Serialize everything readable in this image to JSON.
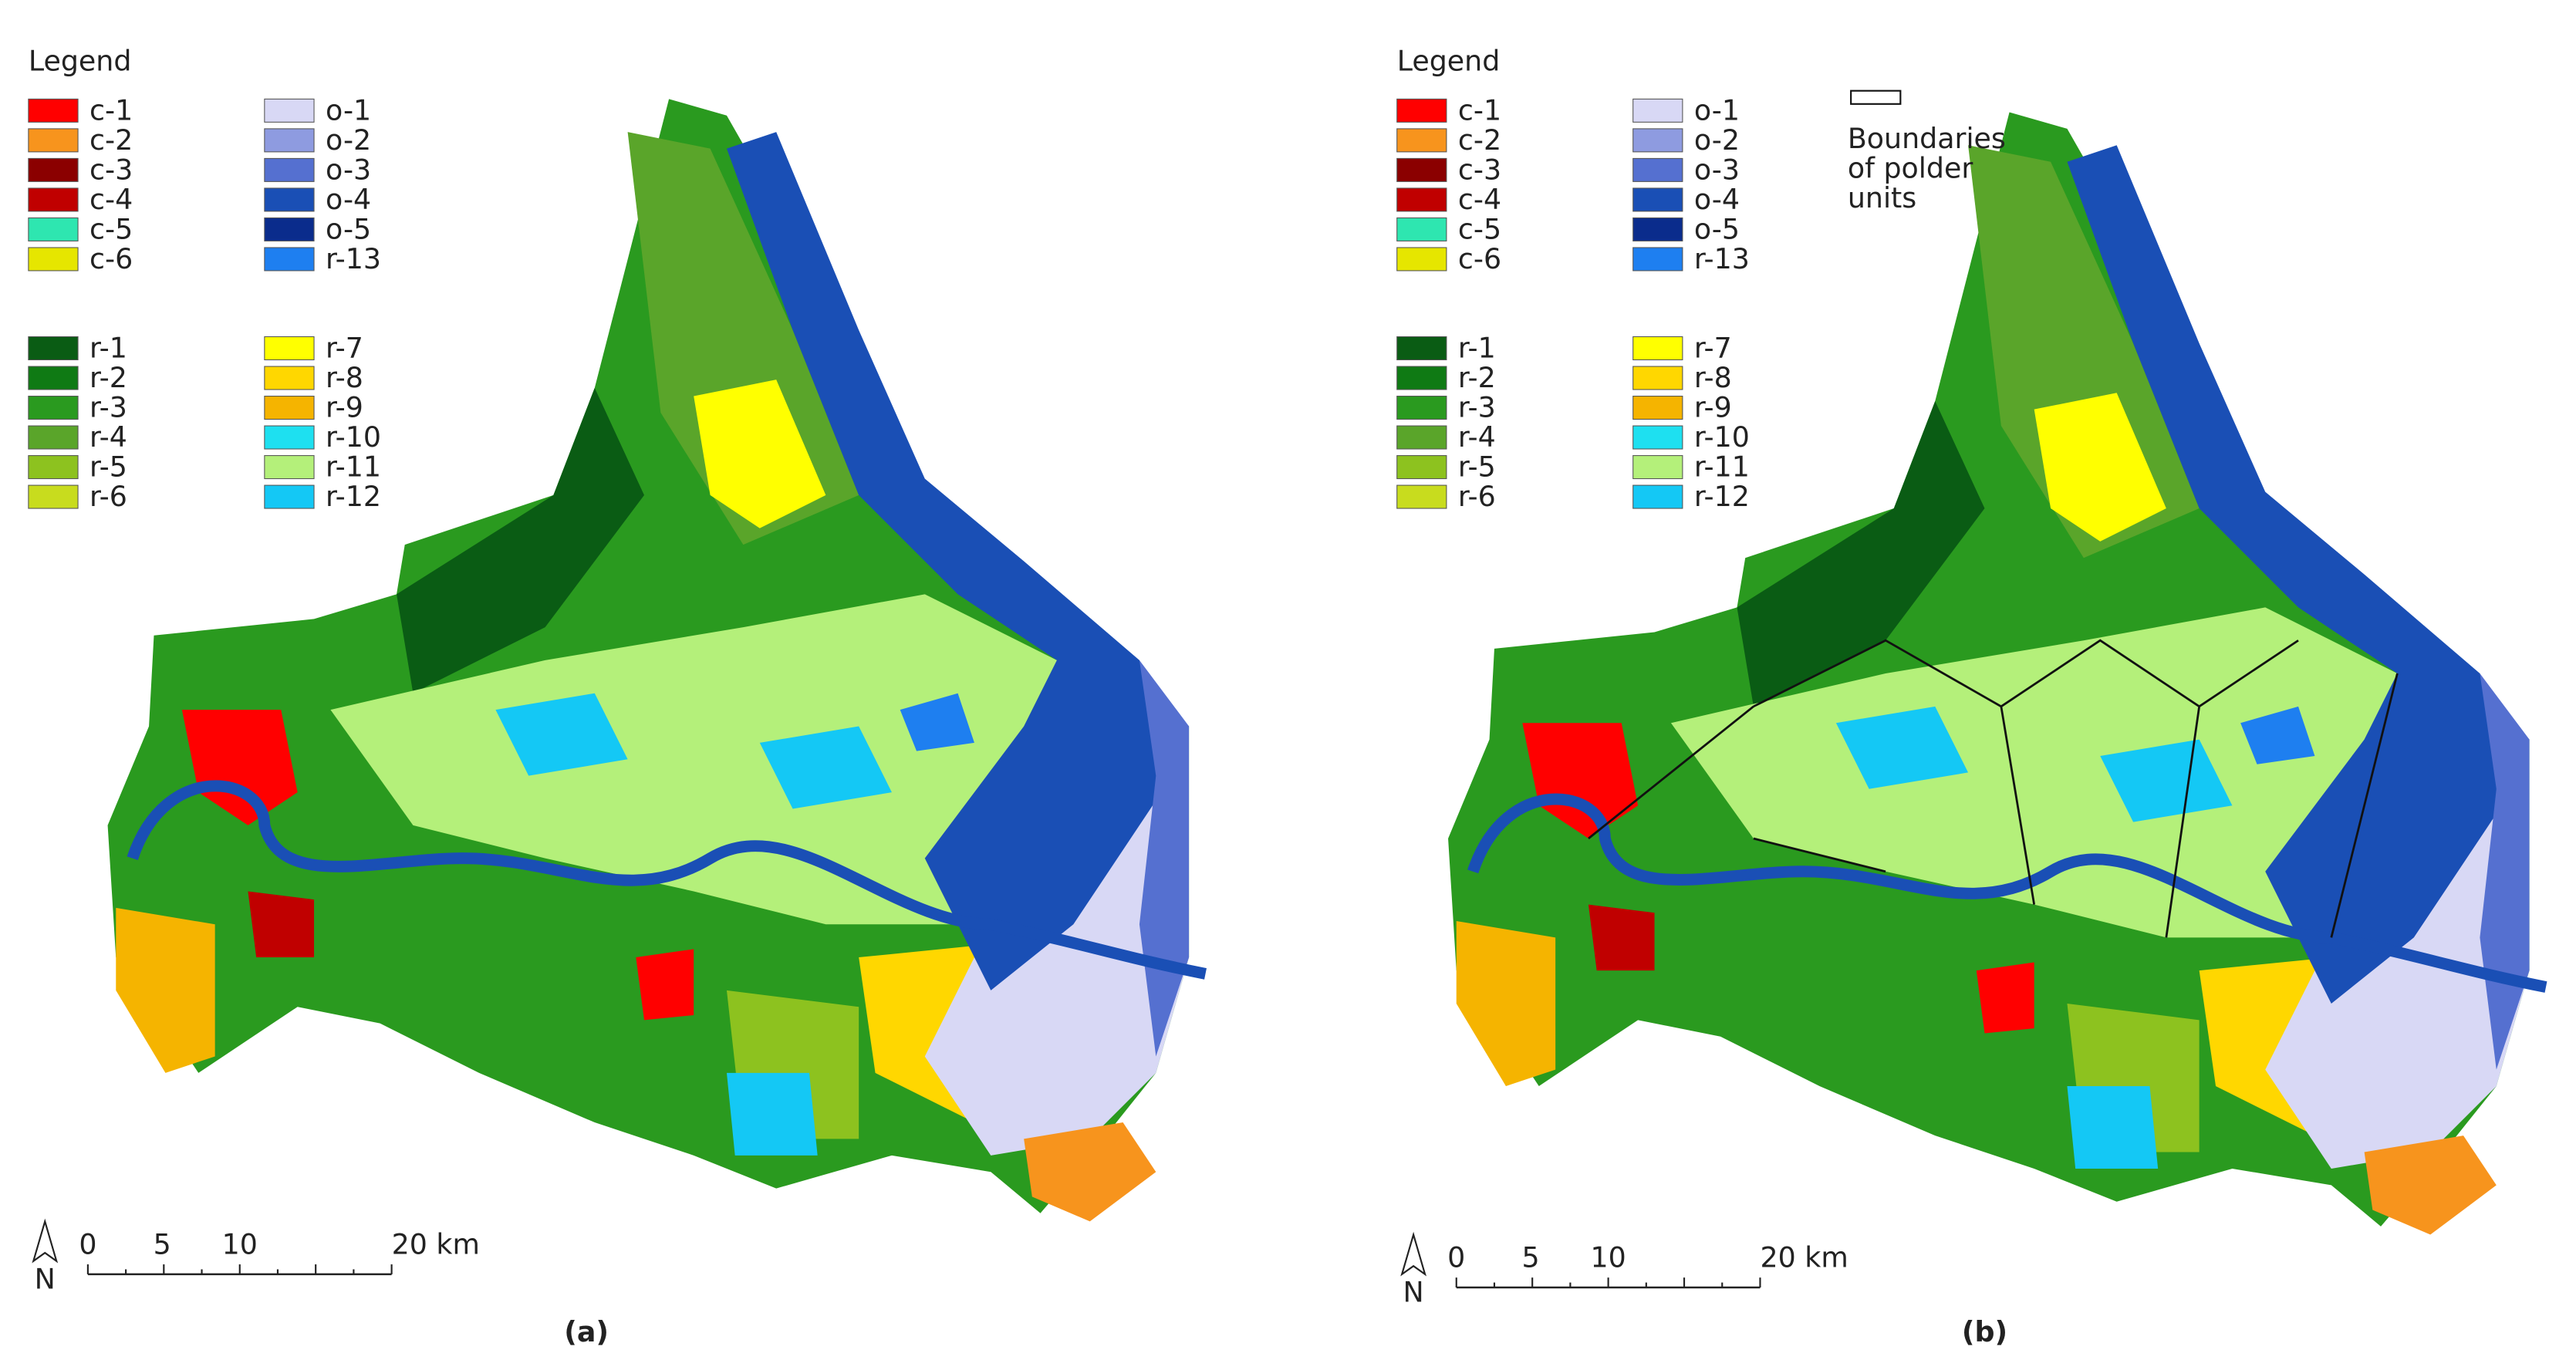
{
  "panels": [
    {
      "legend": {
        "title": "Legend",
        "groups": [
          [
            {
              "label": "c-1",
              "color": "#ff0000"
            },
            {
              "label": "c-2",
              "color": "#f7941d"
            },
            {
              "label": "c-3",
              "color": "#8b0000"
            },
            {
              "label": "c-4",
              "color": "#c00000"
            },
            {
              "label": "c-5",
              "color": "#2ee6b0"
            },
            {
              "label": "c-6",
              "color": "#e6e600"
            }
          ],
          [
            {
              "label": "o-1",
              "color": "#d8d8f5"
            },
            {
              "label": "o-2",
              "color": "#8e9be0"
            },
            {
              "label": "o-3",
              "color": "#5570d0"
            },
            {
              "label": "o-4",
              "color": "#1a4fb5"
            },
            {
              "label": "o-5",
              "color": "#0a2c8c"
            },
            {
              "label": "r-13",
              "color": "#1e7ff0"
            }
          ],
          [
            {
              "label": "r-1",
              "color": "#0a5c14"
            },
            {
              "label": "r-2",
              "color": "#0f7a14"
            },
            {
              "label": "r-3",
              "color": "#2a9a1f"
            },
            {
              "label": "r-4",
              "color": "#5aa52a"
            },
            {
              "label": "r-5",
              "color": "#8dc21f"
            },
            {
              "label": "r-6",
              "color": "#c8dc1e"
            }
          ],
          [
            {
              "label": "r-7",
              "color": "#ffff00"
            },
            {
              "label": "r-8",
              "color": "#ffd700"
            },
            {
              "label": "r-9",
              "color": "#f5b400"
            },
            {
              "label": "r-10",
              "color": "#1ee0f0"
            },
            {
              "label": "r-11",
              "color": "#b4f07a"
            },
            {
              "label": "r-12",
              "color": "#14c8f5"
            }
          ]
        ]
      },
      "scale_bar": [
        "0",
        "5",
        "10",
        "20 km"
      ],
      "north": "N",
      "caption": "(a)"
    },
    {
      "legend": {
        "title": "Legend",
        "groups": [
          [
            {
              "label": "c-1",
              "color": "#ff0000"
            },
            {
              "label": "c-2",
              "color": "#f7941d"
            },
            {
              "label": "c-3",
              "color": "#8b0000"
            },
            {
              "label": "c-4",
              "color": "#c00000"
            },
            {
              "label": "c-5",
              "color": "#2ee6b0"
            },
            {
              "label": "c-6",
              "color": "#e6e600"
            }
          ],
          [
            {
              "label": "o-1",
              "color": "#d8d8f5"
            },
            {
              "label": "o-2",
              "color": "#8e9be0"
            },
            {
              "label": "o-3",
              "color": "#5570d0"
            },
            {
              "label": "o-4",
              "color": "#1a4fb5"
            },
            {
              "label": "o-5",
              "color": "#0a2c8c"
            },
            {
              "label": "r-13",
              "color": "#1e7ff0"
            }
          ],
          [
            {
              "label": "r-1",
              "color": "#0a5c14"
            },
            {
              "label": "r-2",
              "color": "#0f7a14"
            },
            {
              "label": "r-3",
              "color": "#2a9a1f"
            },
            {
              "label": "r-4",
              "color": "#5aa52a"
            },
            {
              "label": "r-5",
              "color": "#8dc21f"
            },
            {
              "label": "r-6",
              "color": "#c8dc1e"
            }
          ],
          [
            {
              "label": "r-7",
              "color": "#ffff00"
            },
            {
              "label": "r-8",
              "color": "#ffd700"
            },
            {
              "label": "r-9",
              "color": "#f5b400"
            },
            {
              "label": "r-10",
              "color": "#1ee0f0"
            },
            {
              "label": "r-11",
              "color": "#b4f07a"
            },
            {
              "label": "r-12",
              "color": "#14c8f5"
            }
          ]
        ],
        "boundary_label": [
          "Boundaries",
          "of polder",
          "units"
        ]
      },
      "scale_bar": [
        "0",
        "5",
        "10",
        "20 km"
      ],
      "north": "N",
      "caption": "(b)"
    }
  ]
}
